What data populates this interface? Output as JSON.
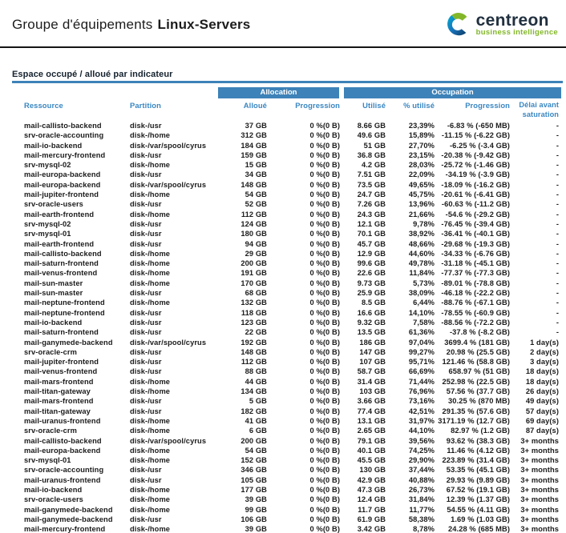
{
  "header": {
    "title_prefix": "Groupe d'équipements",
    "title_name": "Linux-Servers",
    "logo_brand": "centreon",
    "logo_tagline": "business intelligence"
  },
  "section": {
    "title": "Espace occupé / alloué par indicateur"
  },
  "table": {
    "group_headers": {
      "allocation": "Allocation",
      "occupation": "Occupation"
    },
    "columns": [
      "Ressource",
      "Partition",
      "Alloué",
      "Progression",
      "Utilisé",
      "% utilisé",
      "Progression",
      "Délai avant saturation"
    ],
    "rows": [
      [
        "mail-callisto-backend",
        "disk-/usr",
        "37 GB",
        "0 %(0 B)",
        "8.66 GB",
        "23,39%",
        "-6.83 % (-650 MB)",
        "-"
      ],
      [
        "srv-oracle-accounting",
        "disk-/home",
        "312 GB",
        "0 %(0 B)",
        "49.6 GB",
        "15,89%",
        "-11.15 % (-6.22 GB)",
        "-"
      ],
      [
        "mail-io-backend",
        "disk-/var/spool/cyrus",
        "184 GB",
        "0 %(0 B)",
        "51 GB",
        "27,70%",
        "-6.25 % (-3.4 GB)",
        "-"
      ],
      [
        "mail-mercury-frontend",
        "disk-/usr",
        "159 GB",
        "0 %(0 B)",
        "36.8 GB",
        "23,15%",
        "-20.38 % (-9.42 GB)",
        "-"
      ],
      [
        "srv-mysql-02",
        "disk-/home",
        "15 GB",
        "0 %(0 B)",
        "4.2 GB",
        "28,03%",
        "-25.72 % (-1.46 GB)",
        "-"
      ],
      [
        "mail-europa-backend",
        "disk-/usr",
        "34 GB",
        "0 %(0 B)",
        "7.51 GB",
        "22,09%",
        "-34.19 % (-3.9 GB)",
        "-"
      ],
      [
        "mail-europa-backend",
        "disk-/var/spool/cyrus",
        "148 GB",
        "0 %(0 B)",
        "73.5 GB",
        "49,65%",
        "-18.09 % (-16.2 GB)",
        "-"
      ],
      [
        "mail-jupiter-frontend",
        "disk-/home",
        "54 GB",
        "0 %(0 B)",
        "24.7 GB",
        "45,75%",
        "-20.61 % (-6.41 GB)",
        "-"
      ],
      [
        "srv-oracle-users",
        "disk-/usr",
        "52 GB",
        "0 %(0 B)",
        "7.26 GB",
        "13,96%",
        "-60.63 % (-11.2 GB)",
        "-"
      ],
      [
        "mail-earth-frontend",
        "disk-/home",
        "112 GB",
        "0 %(0 B)",
        "24.3 GB",
        "21,66%",
        "-54.6 % (-29.2 GB)",
        "-"
      ],
      [
        "srv-mysql-02",
        "disk-/usr",
        "124 GB",
        "0 %(0 B)",
        "12.1 GB",
        "9,78%",
        "-76.45 % (-39.4 GB)",
        "-"
      ],
      [
        "srv-mysql-01",
        "disk-/usr",
        "180 GB",
        "0 %(0 B)",
        "70.1 GB",
        "38,92%",
        "-36.41 % (-40.1 GB)",
        "-"
      ],
      [
        "mail-earth-frontend",
        "disk-/usr",
        "94 GB",
        "0 %(0 B)",
        "45.7 GB",
        "48,66%",
        "-29.68 % (-19.3 GB)",
        "-"
      ],
      [
        "mail-callisto-backend",
        "disk-/home",
        "29 GB",
        "0 %(0 B)",
        "12.9 GB",
        "44,60%",
        "-34.33 % (-6.76 GB)",
        "-"
      ],
      [
        "mail-saturn-frontend",
        "disk-/home",
        "200 GB",
        "0 %(0 B)",
        "99.6 GB",
        "49,78%",
        "-31.18 % (-45.1 GB)",
        "-"
      ],
      [
        "mail-venus-frontend",
        "disk-/home",
        "191 GB",
        "0 %(0 B)",
        "22.6 GB",
        "11,84%",
        "-77.37 % (-77.3 GB)",
        "-"
      ],
      [
        "mail-sun-master",
        "disk-/home",
        "170 GB",
        "0 %(0 B)",
        "9.73 GB",
        "5,73%",
        "-89.01 % (-78.8 GB)",
        "-"
      ],
      [
        "mail-sun-master",
        "disk-/usr",
        "68 GB",
        "0 %(0 B)",
        "25.9 GB",
        "38,09%",
        "-46.18 % (-22.2 GB)",
        "-"
      ],
      [
        "mail-neptune-frontend",
        "disk-/home",
        "132 GB",
        "0 %(0 B)",
        "8.5 GB",
        "6,44%",
        "-88.76 % (-67.1 GB)",
        "-"
      ],
      [
        "mail-neptune-frontend",
        "disk-/usr",
        "118 GB",
        "0 %(0 B)",
        "16.6 GB",
        "14,10%",
        "-78.55 % (-60.9 GB)",
        "-"
      ],
      [
        "mail-io-backend",
        "disk-/usr",
        "123 GB",
        "0 %(0 B)",
        "9.32 GB",
        "7,58%",
        "-88.56 % (-72.2 GB)",
        "-"
      ],
      [
        "mail-saturn-frontend",
        "disk-/usr",
        "22 GB",
        "0 %(0 B)",
        "13.5 GB",
        "61,36%",
        "-37.8 % (-8.2 GB)",
        "-"
      ],
      [
        "mail-ganymede-backend",
        "disk-/var/spool/cyrus",
        "192 GB",
        "0 %(0 B)",
        "186 GB",
        "97,04%",
        "3699.4 % (181 GB)",
        "1 day(s)"
      ],
      [
        "srv-oracle-crm",
        "disk-/usr",
        "148 GB",
        "0 %(0 B)",
        "147 GB",
        "99,27%",
        "20.98 % (25.5 GB)",
        "2 day(s)"
      ],
      [
        "mail-jupiter-frontend",
        "disk-/usr",
        "112 GB",
        "0 %(0 B)",
        "107 GB",
        "95,71%",
        "121.46 % (58.8 GB)",
        "3 day(s)"
      ],
      [
        "mail-venus-frontend",
        "disk-/usr",
        "88 GB",
        "0 %(0 B)",
        "58.7 GB",
        "66,69%",
        "658.97 % (51 GB)",
        "18 day(s)"
      ],
      [
        "mail-mars-frontend",
        "disk-/home",
        "44 GB",
        "0 %(0 B)",
        "31.4 GB",
        "71,44%",
        "252.98 % (22.5 GB)",
        "18 day(s)"
      ],
      [
        "mail-titan-gateway",
        "disk-/home",
        "134 GB",
        "0 %(0 B)",
        "103 GB",
        "76,96%",
        "57.56 % (37.7 GB)",
        "26 day(s)"
      ],
      [
        "mail-mars-frontend",
        "disk-/usr",
        "5 GB",
        "0 %(0 B)",
        "3.66 GB",
        "73,16%",
        "30.25 % (870 MB)",
        "49 day(s)"
      ],
      [
        "mail-titan-gateway",
        "disk-/usr",
        "182 GB",
        "0 %(0 B)",
        "77.4 GB",
        "42,51%",
        "291.35 % (57.6 GB)",
        "57 day(s)"
      ],
      [
        "mail-uranus-frontend",
        "disk-/home",
        "41 GB",
        "0 %(0 B)",
        "13.1 GB",
        "31,97%",
        "3171.19 % (12.7 GB)",
        "69 day(s)"
      ],
      [
        "srv-oracle-crm",
        "disk-/home",
        "6 GB",
        "0 %(0 B)",
        "2.65 GB",
        "44,10%",
        "82.97 % (1.2 GB)",
        "87 day(s)"
      ],
      [
        "mail-callisto-backend",
        "disk-/var/spool/cyrus",
        "200 GB",
        "0 %(0 B)",
        "79.1 GB",
        "39,56%",
        "93.62 % (38.3 GB)",
        "3+ months"
      ],
      [
        "mail-europa-backend",
        "disk-/home",
        "54 GB",
        "0 %(0 B)",
        "40.1 GB",
        "74,25%",
        "11.46 % (4.12 GB)",
        "3+ months"
      ],
      [
        "srv-mysql-01",
        "disk-/home",
        "152 GB",
        "0 %(0 B)",
        "45.5 GB",
        "29,90%",
        "223.89 % (31.4 GB)",
        "3+ months"
      ],
      [
        "srv-oracle-accounting",
        "disk-/usr",
        "346 GB",
        "0 %(0 B)",
        "130 GB",
        "37,44%",
        "53.35 % (45.1 GB)",
        "3+ months"
      ],
      [
        "mail-uranus-frontend",
        "disk-/usr",
        "105 GB",
        "0 %(0 B)",
        "42.9 GB",
        "40,88%",
        "29.93 % (9.89 GB)",
        "3+ months"
      ],
      [
        "mail-io-backend",
        "disk-/home",
        "177 GB",
        "0 %(0 B)",
        "47.3 GB",
        "26,73%",
        "67.52 % (19.1 GB)",
        "3+ months"
      ],
      [
        "srv-oracle-users",
        "disk-/home",
        "39 GB",
        "0 %(0 B)",
        "12.4 GB",
        "31,84%",
        "12.39 % (1.37 GB)",
        "3+ months"
      ],
      [
        "mail-ganymede-backend",
        "disk-/home",
        "99 GB",
        "0 %(0 B)",
        "11.7 GB",
        "11,77%",
        "54.55 % (4.11 GB)",
        "3+ months"
      ],
      [
        "mail-ganymede-backend",
        "disk-/usr",
        "106 GB",
        "0 %(0 B)",
        "61.9 GB",
        "58,38%",
        "1.69 % (1.03 GB)",
        "3+ months"
      ],
      [
        "mail-mercury-frontend",
        "disk-/home",
        "39 GB",
        "0 %(0 B)",
        "3.42 GB",
        "8,78%",
        "24.28 % (685 MB)",
        "3+ months"
      ]
    ]
  },
  "colors": {
    "band_blue": "#3d82b8",
    "header_text_blue": "#3a87c2",
    "brand_navy": "#21303f",
    "brand_green": "#83b729",
    "logo_teal": "#00a9ce",
    "logo_blue": "#1a75bc",
    "logo_dark_blue": "#0d3a63"
  }
}
